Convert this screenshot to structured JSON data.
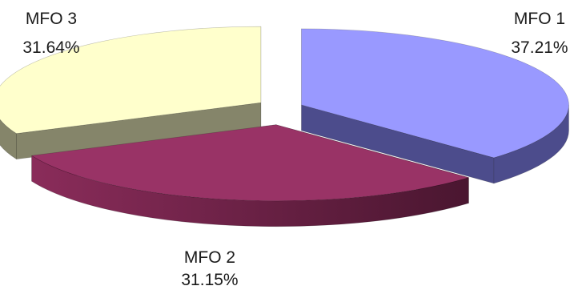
{
  "chart_data": {
    "type": "pie",
    "style": "3d-exploded",
    "slices": [
      {
        "label": "MFO 1",
        "value": 37.21,
        "value_label": "37.21%",
        "color": "#9999FF",
        "side_color": "#4C4C8C"
      },
      {
        "label": "MFO 2",
        "value": 31.15,
        "value_label": "31.15%",
        "color": "#993366",
        "side_color": "#5A1E3C"
      },
      {
        "label": "MFO 3",
        "value": 31.64,
        "value_label": "31.64%",
        "color": "#FFFFCC",
        "side_color": "#85856A"
      }
    ],
    "legend": "none",
    "title": ""
  }
}
